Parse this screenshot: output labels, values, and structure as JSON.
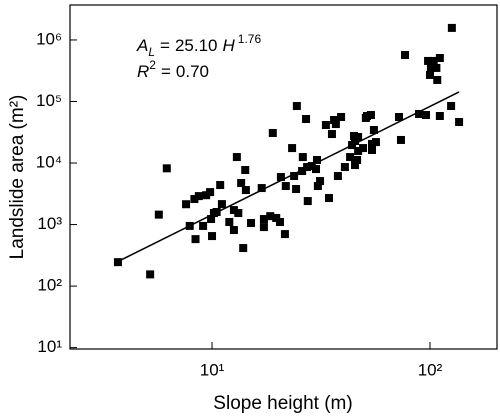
{
  "chart_data": {
    "type": "scatter",
    "x_label": "Slope height (m)",
    "y_label": "Landslide area (m²)",
    "xscale": "log",
    "yscale": "log",
    "color": "#000000",
    "xlim": [
      2.23,
      203
    ],
    "ylim": [
      9.5,
      3700000
    ],
    "xticks": [
      {
        "value": 10,
        "label": "10¹"
      },
      {
        "value": 100,
        "label": "10²"
      }
    ],
    "yticks": [
      {
        "value": 10,
        "label": "10¹"
      },
      {
        "value": 100,
        "label": "10²"
      },
      {
        "value": 1000,
        "label": "10³"
      },
      {
        "value": 10000,
        "label": "10⁴"
      },
      {
        "value": 100000,
        "label": "10⁵"
      },
      {
        "value": 1000000,
        "label": "10⁶"
      }
    ],
    "x": [
      3.7,
      5.2,
      5.7,
      6.2,
      7.6,
      8.3,
      7.9,
      8.4,
      8.7,
      9.1,
      9.4,
      9.8,
      9.9,
      10,
      10.2,
      10.5,
      11.1,
      10.9,
      12.0,
      12.6,
      12.6,
      13.0,
      13.6,
      14.2,
      13.9,
      13.2,
      14.3,
      15.1,
      16.9,
      17.3,
      17.3,
      18.5,
      19.0,
      19.7,
      20.5,
      21.6,
      20.7,
      21.8,
      23.3,
      23.8,
      24.3,
      24.5,
      25.9,
      26.1,
      27.3,
      27.0,
      27.5,
      28.7,
      30.0,
      31.3,
      30.3,
      30.6,
      33.3,
      35.5,
      36.3,
      37.0,
      34.4,
      37.8,
      39.1,
      40.7,
      43.0,
      43.9,
      45.3,
      45.3,
      46.3,
      44.8,
      46.8,
      46.8,
      49.3,
      51.4,
      54.2,
      53.6,
      54.2,
      50.8,
      55.3,
      56.5,
      72.1,
      73.6,
      76.8,
      89.1,
      95.9,
      98.0,
      100,
      101,
      104,
      107,
      108,
      111,
      125,
      126,
      136,
      111
    ],
    "values": [
      245,
      155,
      1450,
      8200,
      2140,
      2600,
      950,
      580,
      2900,
      950,
      3000,
      3370,
      1230,
      650,
      1540,
      1600,
      2150,
      4390,
      1100,
      1720,
      815,
      12500,
      4730,
      7700,
      415,
      1540,
      3640,
      1060,
      3920,
      1230,
      910,
      1370,
      30800,
      1280,
      1100,
      700,
      5920,
      4230,
      17500,
      6150,
      3780,
      84500,
      7410,
      12500,
      8610,
      51900,
      2410,
      8930,
      7980,
      5090,
      11200,
      4230,
      41500,
      29600,
      50000,
      43000,
      2700,
      6150,
      56000,
      8610,
      12500,
      19600,
      22800,
      9270,
      11200,
      27500,
      26500,
      15700,
      17500,
      58100,
      20400,
      60300,
      16300,
      54000,
      34400,
      21900,
      56000,
      23700,
      570000,
      62700,
      60300,
      456000,
      270000,
      351000,
      456000,
      351000,
      224000,
      58100,
      84500,
      1570000,
      46400,
      509000
    ],
    "fit": {
      "symbol": "A",
      "symbol_sub": "L",
      "equals": "=",
      "coefficient": 25.1,
      "coefficient_label": "25.10",
      "variable": "H",
      "exponent": 1.76,
      "r2_symbol": "R",
      "r2_sup": "2",
      "r2": 0.7,
      "r2_label": "0.70",
      "x_range": [
        3.6,
        136
      ]
    }
  }
}
